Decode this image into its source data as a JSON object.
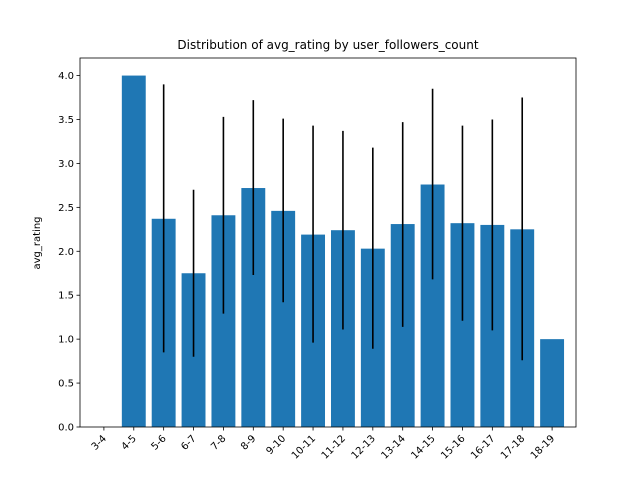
{
  "chart_data": {
    "type": "bar",
    "title": "Distribution of avg_rating by user_followers_count",
    "xlabel": "",
    "ylabel": "avg_rating",
    "categories": [
      "3-4",
      "4-5",
      "5-6",
      "6-7",
      "7-8",
      "8-9",
      "9-10",
      "10-11",
      "11-12",
      "12-13",
      "13-14",
      "14-15",
      "15-16",
      "16-17",
      "17-18",
      "18-19"
    ],
    "values": [
      null,
      4.0,
      2.37,
      1.75,
      2.41,
      2.72,
      2.46,
      2.19,
      2.24,
      2.03,
      2.31,
      2.76,
      2.32,
      2.3,
      2.25,
      1.0
    ],
    "error_low": [
      null,
      null,
      0.85,
      0.8,
      1.29,
      1.73,
      1.42,
      0.96,
      1.11,
      0.89,
      1.14,
      1.68,
      1.21,
      1.1,
      0.76,
      null
    ],
    "error_high": [
      null,
      null,
      3.9,
      2.7,
      3.53,
      3.72,
      3.51,
      3.43,
      3.37,
      3.18,
      3.47,
      3.85,
      3.43,
      3.5,
      3.75,
      null
    ],
    "ylim": [
      0,
      4.2
    ],
    "yticks": [
      "0.0",
      "0.5",
      "1.0",
      "1.5",
      "2.0",
      "2.5",
      "3.0",
      "3.5",
      "4.0"
    ],
    "grid": false,
    "legend": "none",
    "colors": {
      "bar": "#1f77b4",
      "errorbar": "#000000",
      "axis": "#000000"
    }
  }
}
